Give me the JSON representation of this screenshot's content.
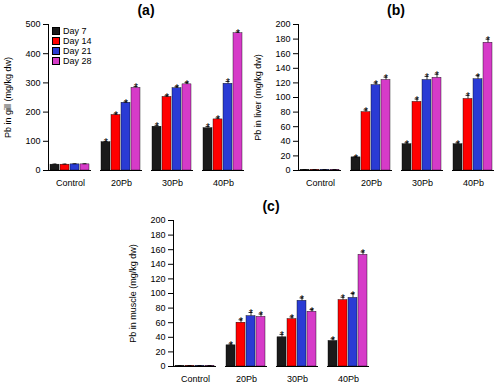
{
  "chart_data": [
    {
      "type": "bar",
      "title": "(a)",
      "y_label": "Pb in gill (mg/kg dw)",
      "categories": [
        "Control",
        "20Pb",
        "30Pb",
        "40Pb"
      ],
      "series": [
        {
          "name": "Day 7",
          "color": "#1a1a1a",
          "values": [
            20,
            97,
            150,
            145
          ],
          "errors": [
            2,
            3,
            5,
            6
          ]
        },
        {
          "name": "Day 14",
          "color": "#ff0000",
          "values": [
            20,
            190,
            252,
            175
          ],
          "errors": [
            2,
            4,
            4,
            5
          ]
        },
        {
          "name": "Day 21",
          "color": "#2a3bd4",
          "values": [
            21,
            232,
            282,
            297
          ],
          "errors": [
            2,
            3,
            5,
            8
          ]
        },
        {
          "name": "Day 28",
          "color": "#d63bc8",
          "values": [
            21,
            283,
            295,
            470
          ],
          "errors": [
            2,
            5,
            6,
            4
          ]
        }
      ],
      "ylim": [
        0,
        500
      ],
      "yticks": [
        0,
        100,
        200,
        300,
        400,
        500
      ],
      "annotation": "*",
      "annotated_categories": [
        "20Pb",
        "30Pb",
        "40Pb"
      ],
      "legend": "top-left"
    },
    {
      "type": "bar",
      "title": "(b)",
      "y_label": "Pb in liver (mg/kg dw)",
      "categories": [
        "Control",
        "20Pb",
        "30Pb",
        "40Pb"
      ],
      "series": [
        {
          "name": "Day 7",
          "color": "#1a1a1a",
          "values": [
            1,
            18,
            36,
            36
          ],
          "errors": [
            0.3,
            1,
            2,
            2
          ]
        },
        {
          "name": "Day 14",
          "color": "#ff0000",
          "values": [
            1,
            80,
            94,
            98
          ],
          "errors": [
            0.3,
            3,
            4,
            5
          ]
        },
        {
          "name": "Day 21",
          "color": "#2a3bd4",
          "values": [
            1,
            117,
            124,
            125
          ],
          "errors": [
            0.3,
            3,
            5,
            5
          ]
        },
        {
          "name": "Day 28",
          "color": "#d63bc8",
          "values": [
            1,
            124,
            127,
            175
          ],
          "errors": [
            0.3,
            4,
            5,
            5
          ]
        }
      ],
      "ylim": [
        0,
        200
      ],
      "yticks": [
        0,
        20,
        40,
        60,
        80,
        100,
        120,
        140,
        160,
        180,
        200
      ],
      "annotation": "*",
      "annotated_categories": [
        "20Pb",
        "30Pb",
        "40Pb"
      ]
    },
    {
      "type": "bar",
      "title": "(c)",
      "y_label": "Pb in muscle (mg/kg dw)",
      "categories": [
        "Control",
        "20Pb",
        "30Pb",
        "40Pb"
      ],
      "series": [
        {
          "name": "Day 7",
          "color": "#1a1a1a",
          "values": [
            1,
            29,
            40,
            35
          ],
          "errors": [
            0.3,
            2,
            4,
            3
          ]
        },
        {
          "name": "Day 14",
          "color": "#ff0000",
          "values": [
            1,
            60,
            65,
            91
          ],
          "errors": [
            0.3,
            4,
            3,
            4
          ]
        },
        {
          "name": "Day 21",
          "color": "#2a3bd4",
          "values": [
            1,
            69,
            90,
            94
          ],
          "errors": [
            0.3,
            5,
            4,
            6
          ]
        },
        {
          "name": "Day 28",
          "color": "#d63bc8",
          "values": [
            1,
            68,
            75,
            153
          ],
          "errors": [
            0.3,
            4,
            3,
            4
          ]
        }
      ],
      "ylim": [
        0,
        200
      ],
      "yticks": [
        0,
        20,
        40,
        60,
        80,
        100,
        120,
        140,
        160,
        180,
        200
      ],
      "annotation": "*",
      "annotated_categories": [
        "20Pb",
        "30Pb",
        "40Pb"
      ]
    }
  ]
}
